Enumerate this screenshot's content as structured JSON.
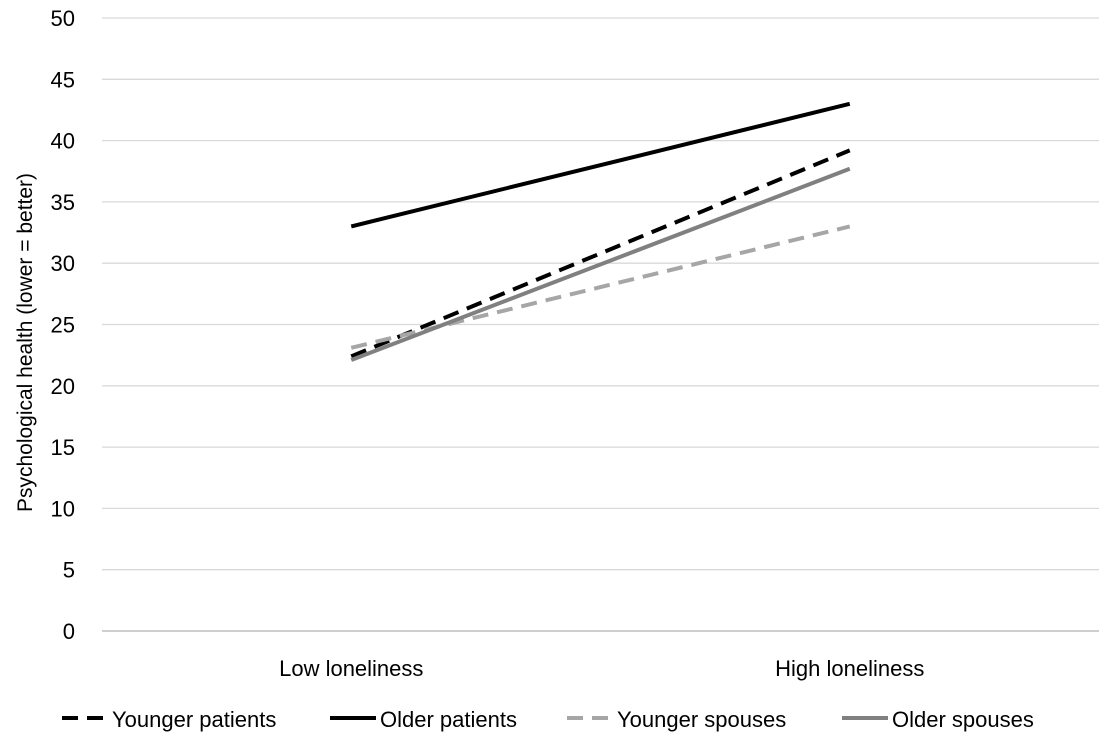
{
  "chart_data": {
    "type": "line",
    "title": "",
    "xlabel": "",
    "ylabel": "Psychological health (lower = better)",
    "categories": [
      "Low loneliness",
      "High loneliness"
    ],
    "ylim": [
      0,
      50
    ],
    "yticks": [
      0,
      5,
      10,
      15,
      20,
      25,
      30,
      35,
      40,
      45,
      50
    ],
    "grid": true,
    "legend_position": "bottom",
    "series": [
      {
        "name": "Younger patients",
        "values": [
          22.4,
          39.2
        ],
        "color": "#000000",
        "dashed": true
      },
      {
        "name": "Older patients",
        "values": [
          33.0,
          43.0
        ],
        "color": "#000000",
        "dashed": false
      },
      {
        "name": "Younger spouses",
        "values": [
          23.1,
          33.0
        ],
        "color": "#a6a6a6",
        "dashed": true
      },
      {
        "name": "Older spouses",
        "values": [
          22.1,
          37.7
        ],
        "color": "#808080",
        "dashed": false
      }
    ]
  }
}
